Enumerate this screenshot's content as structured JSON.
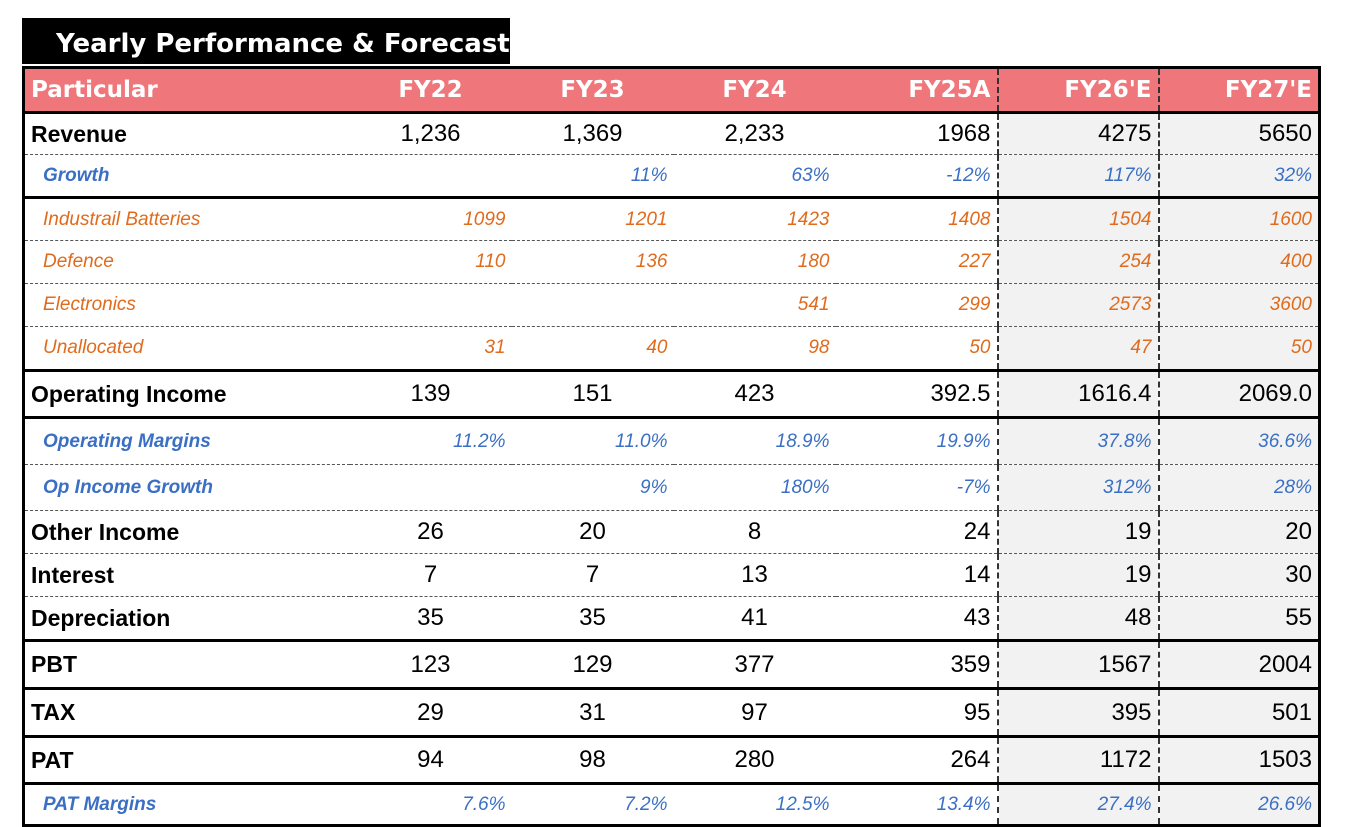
{
  "title": "Yearly Performance & Forecast",
  "columns": [
    "Particular",
    "FY22",
    "FY23",
    "FY24",
    "FY25A",
    "FY26'E",
    "FY27'E"
  ],
  "rows": [
    {
      "label": "Revenue",
      "style": "main",
      "values": [
        "1,236",
        "1,369",
        "2,233",
        "1968",
        "4275",
        "5650"
      ]
    },
    {
      "label": "Growth",
      "style": "blue",
      "values": [
        "",
        "11%",
        "63%",
        "-12%",
        "117%",
        "32%"
      ]
    },
    {
      "label": "Industrail Batteries",
      "style": "orange",
      "values": [
        "1099",
        "1201",
        "1423",
        "1408",
        "1504",
        "1600"
      ]
    },
    {
      "label": "Defence",
      "style": "orange",
      "values": [
        "110",
        "136",
        "180",
        "227",
        "254",
        "400"
      ]
    },
    {
      "label": "Electronics",
      "style": "orange",
      "values": [
        "",
        "",
        "541",
        "299",
        "2573",
        "3600"
      ]
    },
    {
      "label": "Unallocated",
      "style": "orange",
      "values": [
        "31",
        "40",
        "98",
        "50",
        "47",
        "50"
      ]
    },
    {
      "label": "Operating Income",
      "style": "main",
      "values": [
        "139",
        "151",
        "423",
        "392.5",
        "1616.4",
        "2069.0"
      ]
    },
    {
      "label": "Operating Margins",
      "style": "blue",
      "values": [
        "11.2%",
        "11.0%",
        "18.9%",
        "19.9%",
        "37.8%",
        "36.6%"
      ]
    },
    {
      "label": "Op Income Growth",
      "style": "blue",
      "values": [
        "",
        "9%",
        "180%",
        "-7%",
        "312%",
        "28%"
      ]
    },
    {
      "label": "Other Income",
      "style": "main",
      "values": [
        "26",
        "20",
        "8",
        "24",
        "19",
        "20"
      ]
    },
    {
      "label": "Interest",
      "style": "main",
      "values": [
        "7",
        "7",
        "13",
        "14",
        "19",
        "30"
      ]
    },
    {
      "label": "Depreciation",
      "style": "main",
      "values": [
        "35",
        "35",
        "41",
        "43",
        "48",
        "55"
      ]
    },
    {
      "label": "PBT",
      "style": "main",
      "values": [
        "123",
        "129",
        "377",
        "359",
        "1567",
        "2004"
      ]
    },
    {
      "label": "TAX",
      "style": "main",
      "values": [
        "29",
        "31",
        "97",
        "95",
        "395",
        "501"
      ]
    },
    {
      "label": "PAT",
      "style": "main",
      "values": [
        "94",
        "98",
        "280",
        "264",
        "1172",
        "1503"
      ]
    },
    {
      "label": "PAT Margins",
      "style": "blue",
      "values": [
        "7.6%",
        "7.2%",
        "12.5%",
        "13.4%",
        "27.4%",
        "26.6%"
      ]
    }
  ],
  "colors": {
    "header_bg": "#ef767a",
    "blue_text": "#3a6fc4",
    "orange_text": "#e06b1c"
  }
}
